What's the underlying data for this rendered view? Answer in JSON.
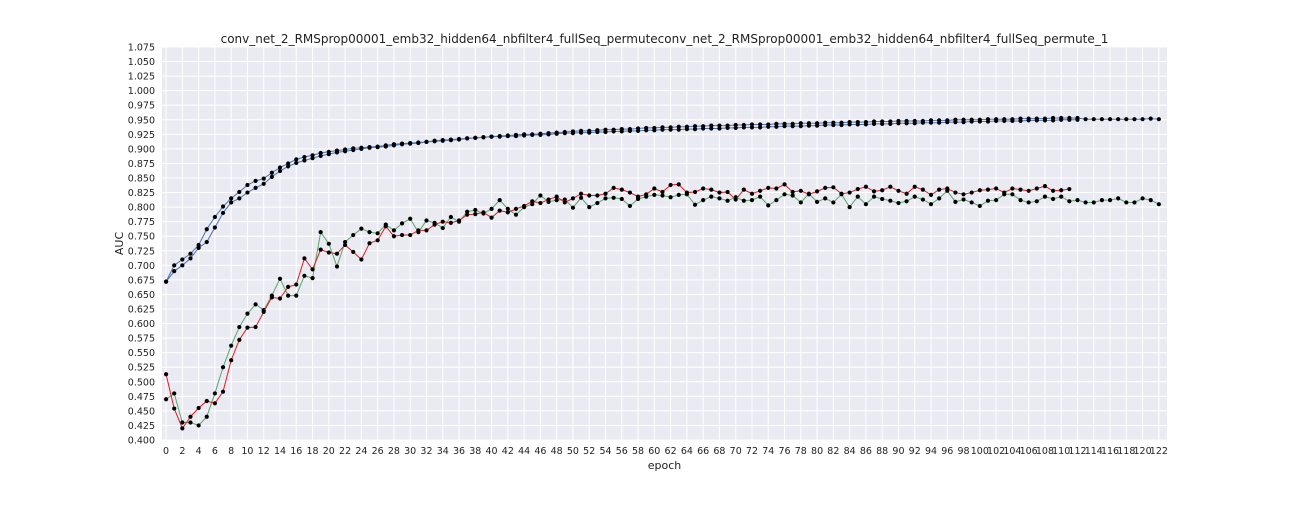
{
  "chart_data": {
    "type": "line",
    "title": "conv_net_2_RMSprop00001_emb32_hidden64_nbfilter4_fullSeq_permuteconv_net_2_RMSprop00001_emb32_hidden64_nbfilter4_fullSeq_permute_1",
    "xlabel": "epoch",
    "ylabel": "AUC",
    "xlim": [
      -0.5,
      123
    ],
    "ylim": [
      0.4,
      1.075
    ],
    "x_ticks": [
      0,
      2,
      4,
      6,
      8,
      10,
      12,
      14,
      16,
      18,
      20,
      22,
      24,
      26,
      28,
      30,
      32,
      34,
      36,
      38,
      40,
      42,
      44,
      46,
      48,
      50,
      52,
      54,
      56,
      58,
      60,
      62,
      64,
      66,
      68,
      70,
      72,
      74,
      76,
      78,
      80,
      82,
      84,
      86,
      88,
      90,
      92,
      94,
      96,
      98,
      100,
      102,
      104,
      106,
      108,
      110,
      112,
      114,
      116,
      118,
      120,
      122
    ],
    "y_ticks": [
      0.4,
      0.425,
      0.45,
      0.475,
      0.5,
      0.525,
      0.55,
      0.575,
      0.6,
      0.625,
      0.65,
      0.675,
      0.7,
      0.725,
      0.75,
      0.775,
      0.8,
      0.825,
      0.85,
      0.875,
      0.9,
      0.925,
      0.95,
      0.975,
      1.0,
      1.025,
      1.05,
      1.075
    ],
    "y_tick_labels": [
      "0.400",
      "0.425",
      "0.450",
      "0.475",
      "0.500",
      "0.525",
      "0.550",
      "0.575",
      "0.600",
      "0.625",
      "0.650",
      "0.675",
      "0.700",
      "0.725",
      "0.750",
      "0.775",
      "0.800",
      "0.825",
      "0.850",
      "0.875",
      "0.900",
      "0.925",
      "0.950",
      "0.975",
      "1.000",
      "1.025",
      "1.050",
      "1.075"
    ],
    "grid": true,
    "series": [
      {
        "color": "#4C72B0",
        "values": [
          0.672,
          0.7,
          0.71,
          0.72,
          0.735,
          0.762,
          0.783,
          0.801,
          0.815,
          0.826,
          0.838,
          0.845,
          0.849,
          0.859,
          0.868,
          0.875,
          0.882,
          0.886,
          0.889,
          0.893,
          0.895,
          0.897,
          0.899,
          0.901,
          0.902,
          0.903,
          0.904,
          0.906,
          0.908,
          0.909,
          0.91,
          0.911,
          0.912,
          0.914,
          0.915,
          0.916,
          0.917,
          0.918,
          0.919,
          0.92,
          0.921,
          0.922,
          0.923,
          0.924,
          0.925,
          0.925,
          0.926,
          0.927,
          0.928,
          0.929,
          0.93,
          0.931,
          0.931,
          0.932,
          0.933,
          0.933,
          0.934,
          0.934,
          0.935,
          0.936,
          0.936,
          0.937,
          0.937,
          0.938,
          0.938,
          0.939,
          0.939,
          0.94,
          0.94,
          0.94,
          0.941,
          0.941,
          0.942,
          0.942,
          0.942,
          0.943,
          0.943,
          0.943,
          0.944,
          0.944,
          0.944,
          0.945,
          0.945,
          0.945,
          0.946,
          0.946,
          0.946,
          0.947,
          0.947,
          0.947,
          0.948,
          0.948,
          0.948,
          0.948,
          0.949,
          0.949,
          0.949,
          0.95,
          0.95,
          0.95,
          0.95,
          0.951,
          0.951,
          0.951,
          0.951,
          0.952,
          0.952,
          0.952,
          0.952,
          0.953,
          0.953,
          0.953,
          0.953,
          0.951,
          0.951,
          0.951,
          0.951,
          0.951,
          0.951,
          0.951,
          0.951,
          0.952,
          0.951
        ]
      },
      {
        "color": "#4C72B0",
        "values": [
          0.672,
          0.69,
          0.7,
          0.712,
          0.73,
          0.74,
          0.765,
          0.79,
          0.808,
          0.815,
          0.825,
          0.833,
          0.84,
          0.852,
          0.862,
          0.87,
          0.876,
          0.88,
          0.884,
          0.888,
          0.891,
          0.894,
          0.896,
          0.898,
          0.9,
          0.902,
          0.903,
          0.904,
          0.906,
          0.908,
          0.909,
          0.91,
          0.912,
          0.913,
          0.914,
          0.915,
          0.916,
          0.918,
          0.919,
          0.92,
          0.921,
          0.921,
          0.922,
          0.922,
          0.923,
          0.924,
          0.924,
          0.925,
          0.926,
          0.927,
          0.927,
          0.928,
          0.928,
          0.929,
          0.929,
          0.93,
          0.93,
          0.931,
          0.931,
          0.932,
          0.932,
          0.933,
          0.933,
          0.933,
          0.934,
          0.934,
          0.935,
          0.935,
          0.935,
          0.936,
          0.936,
          0.937,
          0.937,
          0.937,
          0.938,
          0.938,
          0.939,
          0.939,
          0.939,
          0.94,
          0.94,
          0.941,
          0.941,
          0.941,
          0.942,
          0.942,
          0.942,
          0.943,
          0.943,
          0.943,
          0.944,
          0.944,
          0.944,
          0.945,
          0.945,
          0.945,
          0.946,
          0.946,
          0.946,
          0.947,
          0.947,
          0.947,
          0.948,
          0.948,
          0.948,
          0.948,
          0.949,
          0.949,
          0.949,
          0.949,
          0.95,
          0.95,
          0.95
        ]
      },
      {
        "color": "#55A868",
        "values": [
          0.47,
          0.48,
          0.43,
          0.43,
          0.425,
          0.44,
          0.48,
          0.525,
          0.562,
          0.594,
          0.617,
          0.633,
          0.623,
          0.648,
          0.677,
          0.648,
          0.648,
          0.682,
          0.678,
          0.757,
          0.737,
          0.698,
          0.74,
          0.752,
          0.763,
          0.757,
          0.755,
          0.77,
          0.76,
          0.772,
          0.78,
          0.757,
          0.777,
          0.773,
          0.764,
          0.783,
          0.775,
          0.792,
          0.795,
          0.789,
          0.797,
          0.812,
          0.797,
          0.787,
          0.8,
          0.805,
          0.82,
          0.809,
          0.812,
          0.813,
          0.799,
          0.816,
          0.8,
          0.807,
          0.815,
          0.816,
          0.814,
          0.802,
          0.814,
          0.818,
          0.821,
          0.82,
          0.817,
          0.821,
          0.822,
          0.804,
          0.812,
          0.818,
          0.815,
          0.811,
          0.817,
          0.811,
          0.812,
          0.818,
          0.803,
          0.812,
          0.822,
          0.82,
          0.808,
          0.823,
          0.809,
          0.815,
          0.808,
          0.822,
          0.8,
          0.818,
          0.805,
          0.818,
          0.814,
          0.811,
          0.807,
          0.81,
          0.818,
          0.813,
          0.805,
          0.815,
          0.828,
          0.809,
          0.813,
          0.808,
          0.802,
          0.811,
          0.812,
          0.822,
          0.822,
          0.812,
          0.808,
          0.81,
          0.818,
          0.814,
          0.818,
          0.81,
          0.812,
          0.808,
          0.808,
          0.812,
          0.812,
          0.815,
          0.808,
          0.808,
          0.815,
          0.812,
          0.805
        ]
      },
      {
        "color": "#E31A1C",
        "values": [
          0.513,
          0.454,
          0.42,
          0.44,
          0.455,
          0.467,
          0.463,
          0.483,
          0.537,
          0.572,
          0.593,
          0.594,
          0.62,
          0.645,
          0.643,
          0.663,
          0.667,
          0.712,
          0.693,
          0.727,
          0.722,
          0.72,
          0.735,
          0.723,
          0.71,
          0.738,
          0.743,
          0.767,
          0.75,
          0.752,
          0.752,
          0.76,
          0.76,
          0.77,
          0.775,
          0.773,
          0.777,
          0.787,
          0.788,
          0.791,
          0.782,
          0.794,
          0.791,
          0.797,
          0.802,
          0.81,
          0.807,
          0.813,
          0.818,
          0.808,
          0.815,
          0.823,
          0.82,
          0.82,
          0.823,
          0.833,
          0.83,
          0.825,
          0.818,
          0.822,
          0.832,
          0.826,
          0.838,
          0.839,
          0.825,
          0.826,
          0.832,
          0.83,
          0.825,
          0.826,
          0.813,
          0.83,
          0.823,
          0.828,
          0.833,
          0.832,
          0.839,
          0.826,
          0.828,
          0.822,
          0.827,
          0.833,
          0.834,
          0.823,
          0.825,
          0.831,
          0.835,
          0.827,
          0.829,
          0.835,
          0.828,
          0.823,
          0.835,
          0.83,
          0.821,
          0.83,
          0.832,
          0.825,
          0.822,
          0.825,
          0.829,
          0.83,
          0.832,
          0.825,
          0.832,
          0.83,
          0.828,
          0.832,
          0.836,
          0.828,
          0.829,
          0.831
        ]
      }
    ]
  }
}
